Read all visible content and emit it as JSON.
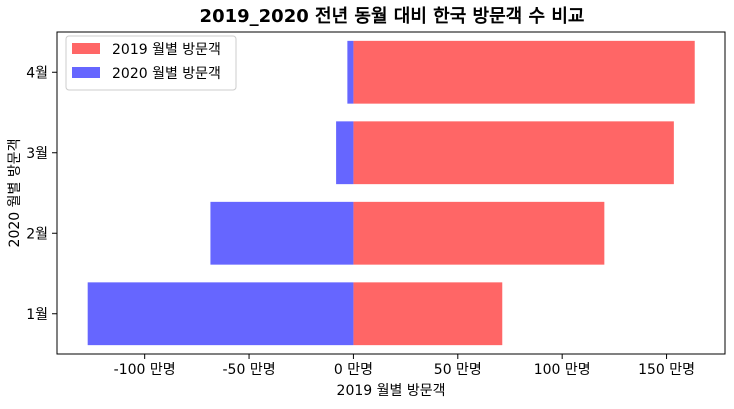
{
  "chart_data": {
    "type": "bar",
    "orientation": "horizontal",
    "title": "2019_2020 전년 동월 대비 한국 방문객 수 비교",
    "xlabel": "2019 월별 방문객",
    "ylabel": "2020 월별 방문객",
    "categories": [
      "1월",
      "2월",
      "3월",
      "4월"
    ],
    "x_tick_values": [
      -100,
      -50,
      0,
      50,
      100,
      150
    ],
    "x_tick_labels": [
      "-100 만명",
      "-50 만명",
      "0 만명",
      "50 만명",
      "100 만명",
      "150 만명"
    ],
    "xlim": [
      -142,
      178
    ],
    "legend_position": "upper-left",
    "grid": false,
    "series": [
      {
        "name": "2019 월별 방문객",
        "color": "#ff6666",
        "values": [
          71.3,
          120.2,
          153.5,
          163.5
        ]
      },
      {
        "name": "2020 월별 방문객",
        "color": "#6666ff",
        "values": [
          -127.3,
          -68.5,
          -8.3,
          -2.9
        ]
      }
    ]
  }
}
